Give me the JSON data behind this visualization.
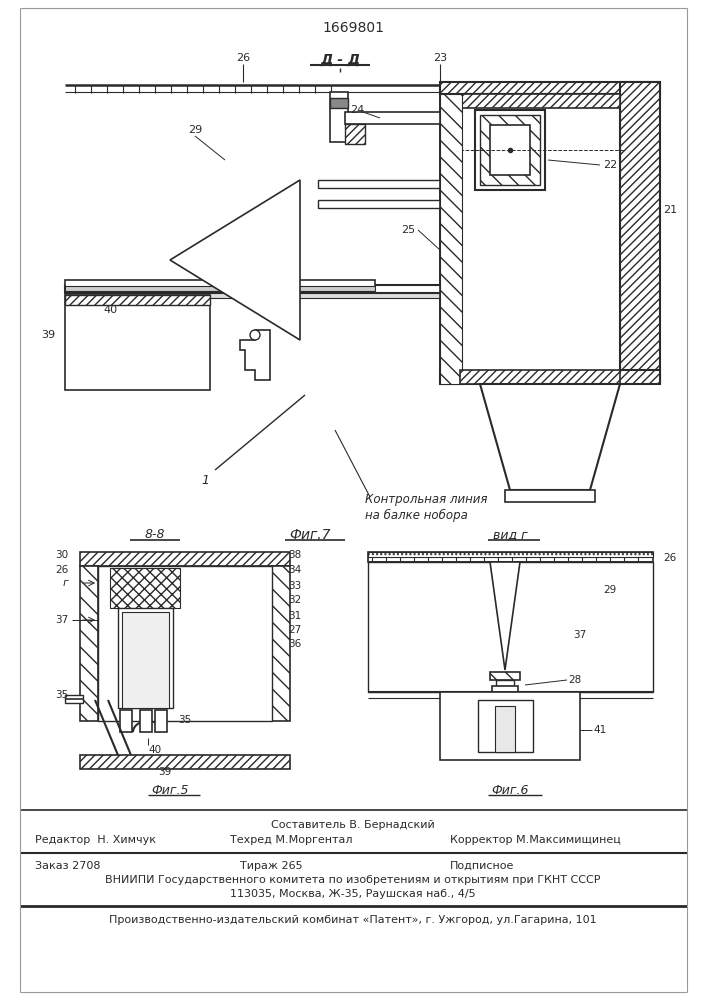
{
  "patent_number": "1669801",
  "bg_color": "#ffffff",
  "line_color": "#2a2a2a",
  "section_label": "Д - Д",
  "bb_label": "8-8",
  "view_label": "вид г",
  "annotation_line1": "Контрольная линия",
  "annotation_line2": "на балке нобора",
  "fig7_label": "Фиг.7",
  "fig5_label": "Фиг.5",
  "fig6_label": "Фиг.6",
  "footer_composer": "Составитель В. Бернадский",
  "footer_editor": "Редактор  Н. Химчук",
  "footer_techred": "Техред М.Моргентал",
  "footer_corrector": "Корректор М.Максимищинец",
  "footer_order": "Заказ 2708",
  "footer_tirazh": "Тираж 265",
  "footer_podpisnoe": "Подписное",
  "footer_vniipii": "ВНИИПИ Государственного комитета по изобретениям и открытиям при ГКНТ СССР",
  "footer_address": "113035, Москва, Ж-35, Раушская наб., 4/5",
  "footer_proizv": "Производственно-издательский комбинат «Патент», г. Ужгород, ул.Гагарина, 101"
}
